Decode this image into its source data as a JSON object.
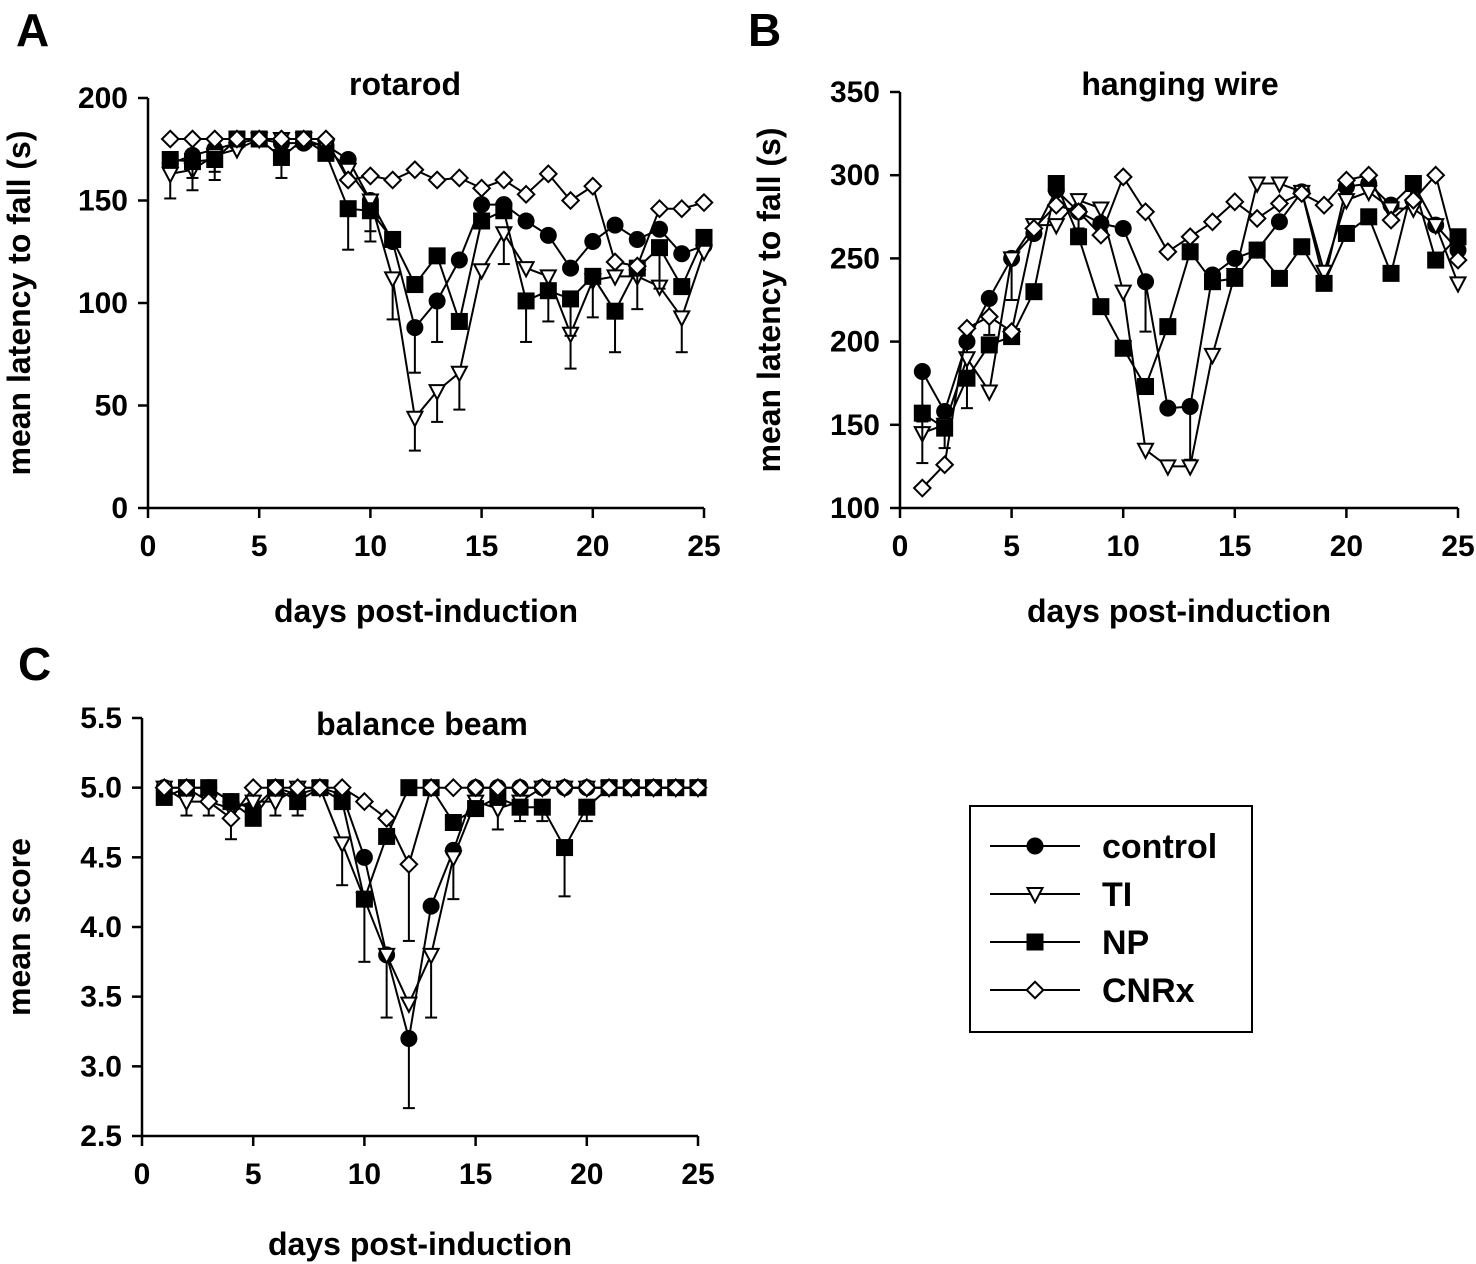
{
  "series_styles": {
    "control": {
      "marker": "circle",
      "fill": "#000000"
    },
    "TI": {
      "marker": "triangle-down",
      "fill": "#ffffff"
    },
    "NP": {
      "marker": "square",
      "fill": "#000000"
    },
    "CNRx": {
      "marker": "diamond",
      "fill": "#ffffff"
    }
  },
  "legend": {
    "items": [
      "control",
      "TI",
      "NP",
      "CNRx"
    ],
    "placement": "right of panel C"
  },
  "chart_data": [
    {
      "panel": "A",
      "type": "line",
      "title": "rotarod",
      "xlabel": "days post-induction",
      "ylabel": "mean latency to fall (s)",
      "xlim": [
        0,
        25
      ],
      "ylim": [
        0,
        200
      ],
      "xticks": [
        0,
        5,
        10,
        15,
        20,
        25
      ],
      "yticks": [
        0,
        50,
        100,
        150,
        200
      ],
      "x": [
        1,
        2,
        3,
        4,
        5,
        6,
        7,
        8,
        9,
        10,
        11,
        12,
        13,
        14,
        15,
        16,
        17,
        18,
        19,
        20,
        21,
        22,
        23,
        24,
        25
      ],
      "series": [
        {
          "name": "control",
          "values": [
            168,
            172,
            175,
            178,
            180,
            178,
            178,
            177,
            170,
            150,
            130,
            88,
            101,
            121,
            148,
            148,
            140,
            133,
            117,
            130,
            138,
            131,
            136,
            124,
            128
          ],
          "errors": [
            0,
            0,
            0,
            0,
            0,
            0,
            0,
            0,
            0,
            20,
            0,
            22,
            20,
            0,
            0,
            0,
            0,
            0,
            0,
            0,
            0,
            0,
            0,
            0,
            0
          ]
        },
        {
          "name": "TI",
          "values": [
            163,
            165,
            172,
            175,
            180,
            180,
            180,
            176,
            165,
            150,
            112,
            44,
            57,
            66,
            116,
            134,
            117,
            113,
            85,
            111,
            113,
            113,
            108,
            93,
            125
          ],
          "errors": [
            12,
            10,
            8,
            0,
            0,
            0,
            0,
            0,
            0,
            15,
            20,
            16,
            15,
            18,
            0,
            15,
            0,
            0,
            17,
            0,
            0,
            0,
            0,
            17,
            0
          ]
        },
        {
          "name": "NP",
          "values": [
            170,
            169,
            170,
            180,
            180,
            171,
            180,
            173,
            146,
            145,
            131,
            109,
            123,
            91,
            140,
            145,
            101,
            106,
            102,
            113,
            96,
            117,
            127,
            108,
            132
          ],
          "errors": [
            0,
            8,
            10,
            0,
            0,
            10,
            0,
            0,
            20,
            0,
            0,
            0,
            0,
            0,
            0,
            0,
            20,
            15,
            18,
            20,
            20,
            20,
            20,
            0,
            0
          ]
        },
        {
          "name": "CNRx",
          "values": [
            180,
            180,
            180,
            180,
            180,
            180,
            180,
            180,
            160,
            162,
            160,
            165,
            160,
            161,
            156,
            160,
            153,
            163,
            150,
            157,
            120,
            118,
            146,
            146,
            149
          ],
          "errors": [
            0,
            0,
            0,
            0,
            0,
            0,
            0,
            0,
            0,
            0,
            0,
            0,
            0,
            0,
            0,
            0,
            0,
            0,
            0,
            0,
            0,
            0,
            0,
            0,
            0
          ]
        }
      ]
    },
    {
      "panel": "B",
      "type": "line",
      "title": "hanging wire",
      "xlabel": "days post-induction",
      "ylabel": "mean latency to fall (s)",
      "xlim": [
        0,
        25
      ],
      "ylim": [
        100,
        350
      ],
      "xticks": [
        0,
        5,
        10,
        15,
        20,
        25
      ],
      "yticks": [
        100,
        150,
        200,
        250,
        300,
        350
      ],
      "x": [
        1,
        2,
        3,
        4,
        5,
        6,
        7,
        8,
        9,
        10,
        11,
        12,
        13,
        14,
        15,
        16,
        17,
        18,
        19,
        20,
        21,
        22,
        23,
        24,
        25
      ],
      "series": [
        {
          "name": "control",
          "values": [
            182,
            158,
            200,
            226,
            250,
            265,
            291,
            278,
            271,
            268,
            236,
            160,
            161,
            240,
            250,
            255,
            272,
            290,
            236,
            293,
            295,
            282,
            295,
            270,
            255
          ],
          "errors": [
            30,
            22,
            20,
            22,
            25,
            0,
            0,
            10,
            0,
            0,
            30,
            0,
            32,
            0,
            0,
            0,
            0,
            0,
            0,
            0,
            0,
            0,
            0,
            0,
            0
          ]
        },
        {
          "name": "TI",
          "values": [
            145,
            150,
            190,
            170,
            250,
            270,
            270,
            285,
            280,
            230,
            135,
            125,
            125,
            192,
            240,
            295,
            295,
            290,
            242,
            285,
            290,
            280,
            280,
            270,
            235
          ],
          "errors": [
            0,
            0,
            30,
            0,
            0,
            0,
            0,
            0,
            0,
            0,
            0,
            0,
            0,
            0,
            0,
            0,
            0,
            0,
            0,
            0,
            0,
            0,
            0,
            0,
            0
          ]
        },
        {
          "name": "NP",
          "values": [
            157,
            148,
            178,
            198,
            203,
            230,
            295,
            263,
            221,
            196,
            173,
            209,
            254,
            236,
            238,
            255,
            238,
            257,
            235,
            265,
            275,
            241,
            295,
            249,
            263
          ],
          "errors": [
            30,
            0,
            0,
            0,
            0,
            0,
            0,
            0,
            0,
            0,
            0,
            0,
            0,
            0,
            0,
            0,
            0,
            0,
            0,
            0,
            0,
            0,
            0,
            0,
            0
          ]
        },
        {
          "name": "CNRx",
          "values": [
            112,
            126,
            208,
            215,
            206,
            268,
            282,
            278,
            264,
            299,
            278,
            254,
            263,
            272,
            284,
            274,
            283,
            289,
            282,
            297,
            300,
            273,
            285,
            300,
            249
          ],
          "errors": [
            0,
            0,
            0,
            0,
            0,
            0,
            0,
            0,
            0,
            0,
            0,
            0,
            0,
            0,
            0,
            0,
            0,
            0,
            0,
            0,
            0,
            0,
            0,
            0,
            0
          ]
        }
      ]
    },
    {
      "panel": "C",
      "type": "line",
      "title": "balance beam",
      "xlabel": "days post-induction",
      "ylabel": "mean score",
      "xlim": [
        0,
        25
      ],
      "ylim": [
        2.5,
        5.5
      ],
      "xticks": [
        0,
        5,
        10,
        15,
        20,
        25
      ],
      "yticks": [
        "2.5",
        "3.0",
        "3.5",
        "4.0",
        "4.5",
        "5.0",
        "5.5"
      ],
      "x": [
        1,
        2,
        3,
        4,
        5,
        6,
        7,
        8,
        9,
        10,
        11,
        12,
        13,
        14,
        15,
        16,
        17,
        18,
        19,
        20,
        21,
        22,
        23,
        24,
        25
      ],
      "series": [
        {
          "name": "control",
          "values": [
            5.0,
            5.0,
            5.0,
            4.9,
            4.85,
            5.0,
            4.95,
            5.0,
            4.95,
            4.5,
            3.8,
            3.2,
            4.15,
            4.55,
            5.0,
            5.0,
            5.0,
            5.0,
            5.0,
            5.0,
            5.0,
            5.0,
            5.0,
            5.0,
            5.0
          ],
          "errors": [
            0,
            0,
            0,
            0,
            0,
            0,
            0,
            0,
            0,
            0,
            0,
            0.5,
            0,
            0,
            0,
            0,
            0,
            0,
            0,
            0,
            0,
            0,
            0,
            0,
            0
          ]
        },
        {
          "name": "TI",
          "values": [
            5.0,
            4.9,
            4.9,
            4.85,
            4.9,
            4.9,
            5.0,
            5.0,
            4.6,
            4.2,
            3.8,
            3.45,
            3.8,
            4.5,
            4.9,
            4.85,
            4.9,
            5.0,
            5.0,
            5.0,
            5.0,
            5.0,
            5.0,
            5.0,
            5.0
          ],
          "errors": [
            0,
            0.1,
            0.1,
            0,
            0,
            0.1,
            0,
            0,
            0.3,
            0.45,
            0.45,
            0,
            0.45,
            0.3,
            0,
            0.15,
            0,
            0,
            0,
            0,
            0,
            0,
            0,
            0,
            0
          ]
        },
        {
          "name": "NP",
          "values": [
            4.93,
            5.0,
            5.0,
            4.9,
            4.78,
            5.0,
            4.9,
            5.0,
            4.9,
            4.2,
            4.65,
            5.0,
            5.0,
            4.75,
            4.85,
            4.93,
            4.86,
            4.86,
            4.57,
            4.86,
            5.0,
            5.0,
            5.0,
            5.0,
            5.0
          ],
          "errors": [
            0,
            0,
            0,
            0,
            0,
            0,
            0.1,
            0,
            0,
            0,
            0,
            0,
            0,
            0,
            0,
            0,
            0.1,
            0.1,
            0.35,
            0.1,
            0,
            0,
            0,
            0,
            0
          ]
        },
        {
          "name": "CNRx",
          "values": [
            5.0,
            5.0,
            4.9,
            4.78,
            5.0,
            5.0,
            5.0,
            5.0,
            5.0,
            4.9,
            4.78,
            4.45,
            5.0,
            5.0,
            5.0,
            5.0,
            5.0,
            5.0,
            5.0,
            5.0,
            5.0,
            5.0,
            5.0,
            5.0,
            5.0
          ],
          "errors": [
            0,
            0,
            0,
            0.15,
            0,
            0,
            0,
            0,
            0,
            0,
            0,
            0.55,
            0,
            0,
            0,
            0,
            0,
            0,
            0,
            0,
            0,
            0,
            0,
            0,
            0
          ]
        }
      ]
    }
  ]
}
